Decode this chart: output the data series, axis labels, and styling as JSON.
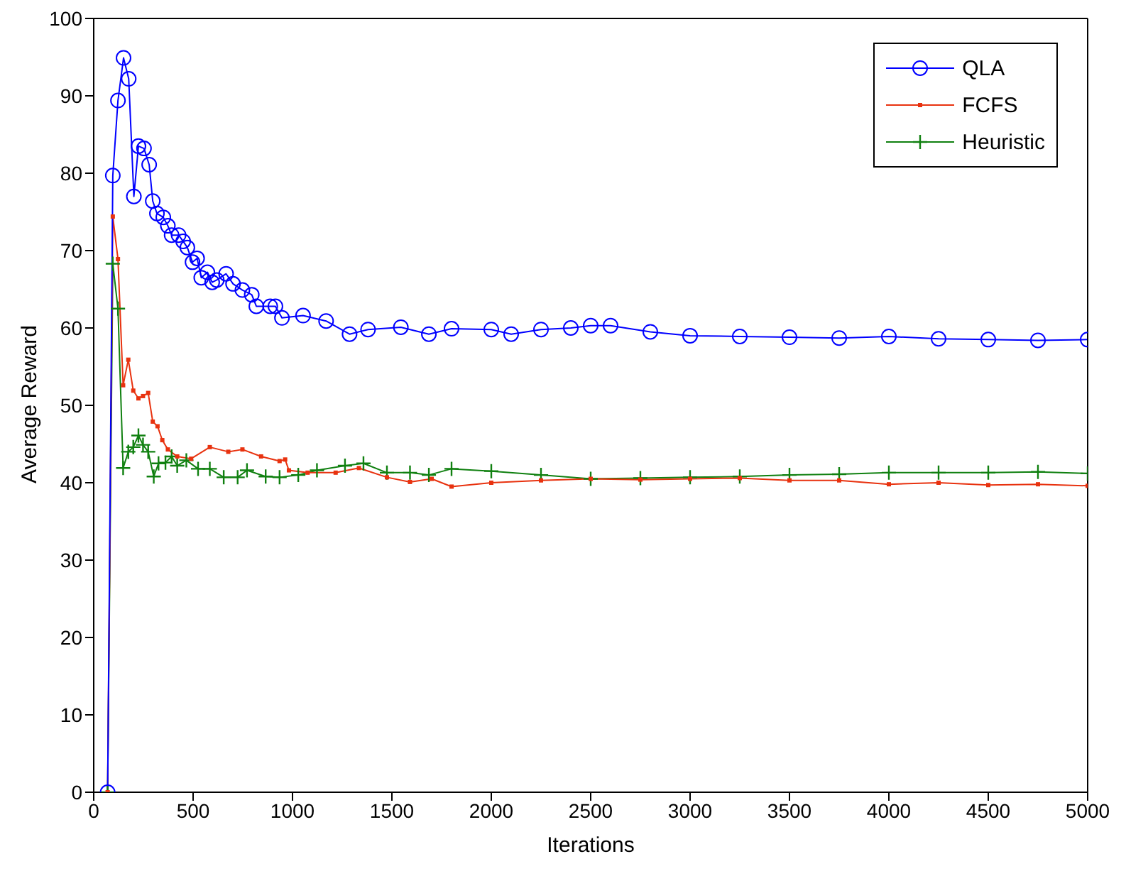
{
  "chart_data": {
    "type": "line",
    "xlabel": "Iterations",
    "ylabel": "Average Reward",
    "xlim": [
      0,
      5000
    ],
    "ylim": [
      0,
      100
    ],
    "xticks": [
      0,
      500,
      1000,
      1500,
      2000,
      2500,
      3000,
      3500,
      4000,
      4500,
      5000
    ],
    "yticks": [
      0,
      10,
      20,
      30,
      40,
      50,
      60,
      70,
      80,
      90,
      100
    ],
    "grid": false,
    "legend": "top right",
    "line_style": "solid",
    "series": [
      {
        "name": "QLA",
        "color": "#0000ff",
        "marker": "circle",
        "x": [
          70,
          96,
          122,
          150,
          176,
          202,
          225,
          253,
          279,
          297,
          318,
          350,
          373,
          392,
          427,
          450,
          471,
          497,
          520,
          541,
          572,
          596,
          619,
          666,
          701,
          748,
          795,
          818,
          888,
          914,
          947,
          1053,
          1169,
          1287,
          1380,
          1545,
          1686,
          1800,
          2000,
          2100,
          2250,
          2400,
          2500,
          2600,
          2800,
          3000,
          3250,
          3500,
          3750,
          4000,
          4250,
          4500,
          4750,
          5000
        ],
        "values": [
          0,
          79.7,
          89.4,
          94.9,
          92.2,
          77,
          83.5,
          83.2,
          81.1,
          76.4,
          74.8,
          74.3,
          73.2,
          72,
          72,
          71.2,
          70.4,
          68.5,
          69,
          66.5,
          67.2,
          65.9,
          66.2,
          67,
          65.7,
          64.9,
          64.3,
          62.8,
          62.8,
          62.8,
          61.3,
          61.6,
          60.9,
          59.2,
          59.8,
          60.1,
          59.2,
          59.9,
          59.8,
          59.2,
          59.8,
          60,
          60.3,
          60.3,
          59.5,
          59,
          58.9,
          58.8,
          58.7,
          58.9,
          58.6,
          58.5,
          58.4,
          58.5
        ]
      },
      {
        "name": "FCFS",
        "color": "#e8320f",
        "marker": "square",
        "x": [
          70,
          96,
          122,
          148,
          174,
          199,
          225,
          248,
          274,
          297,
          321,
          345,
          373,
          420,
          490,
          584,
          677,
          748,
          842,
          935,
          963,
          982,
          1076,
          1217,
          1334,
          1475,
          1591,
          1700,
          1800,
          2000,
          2250,
          2500,
          2750,
          3000,
          3250,
          3500,
          3750,
          4000,
          4250,
          4500,
          4750,
          5000
        ],
        "values": [
          0,
          74.4,
          68.9,
          52.6,
          55.9,
          51.9,
          50.9,
          51.2,
          51.6,
          47.9,
          47.3,
          45.5,
          44.3,
          43.4,
          43.1,
          44.6,
          44,
          44.3,
          43.4,
          42.8,
          43,
          41.6,
          41.3,
          41.3,
          41.9,
          40.7,
          40.1,
          40.5,
          39.5,
          40,
          40.3,
          40.5,
          40.4,
          40.5,
          40.6,
          40.3,
          40.3,
          39.8,
          40,
          39.7,
          39.8,
          39.6
        ]
      },
      {
        "name": "Heuristic",
        "color": "#108010",
        "marker": "cross",
        "x": [
          70,
          96,
          122,
          148,
          174,
          199,
          225,
          248,
          274,
          302,
          326,
          361,
          392,
          420,
          466,
          525,
          584,
          654,
          724,
          771,
          865,
          935,
          1029,
          1123,
          1264,
          1357,
          1475,
          1591,
          1686,
          1800,
          2000,
          2250,
          2500,
          2750,
          3000,
          3250,
          3500,
          3750,
          4000,
          4250,
          4500,
          4750,
          5000
        ],
        "values": [
          0,
          68.3,
          62.5,
          41.9,
          44,
          44.6,
          46.1,
          44.9,
          44,
          40.8,
          42.5,
          42.6,
          43.4,
          42.2,
          42.9,
          41.8,
          41.8,
          40.7,
          40.7,
          41.6,
          40.8,
          40.7,
          41,
          41.6,
          42.2,
          42.5,
          41.3,
          41.3,
          41,
          41.8,
          41.5,
          41,
          40.5,
          40.6,
          40.7,
          40.8,
          41,
          41.1,
          41.3,
          41.3,
          41.3,
          41.4,
          41.2
        ]
      }
    ]
  }
}
